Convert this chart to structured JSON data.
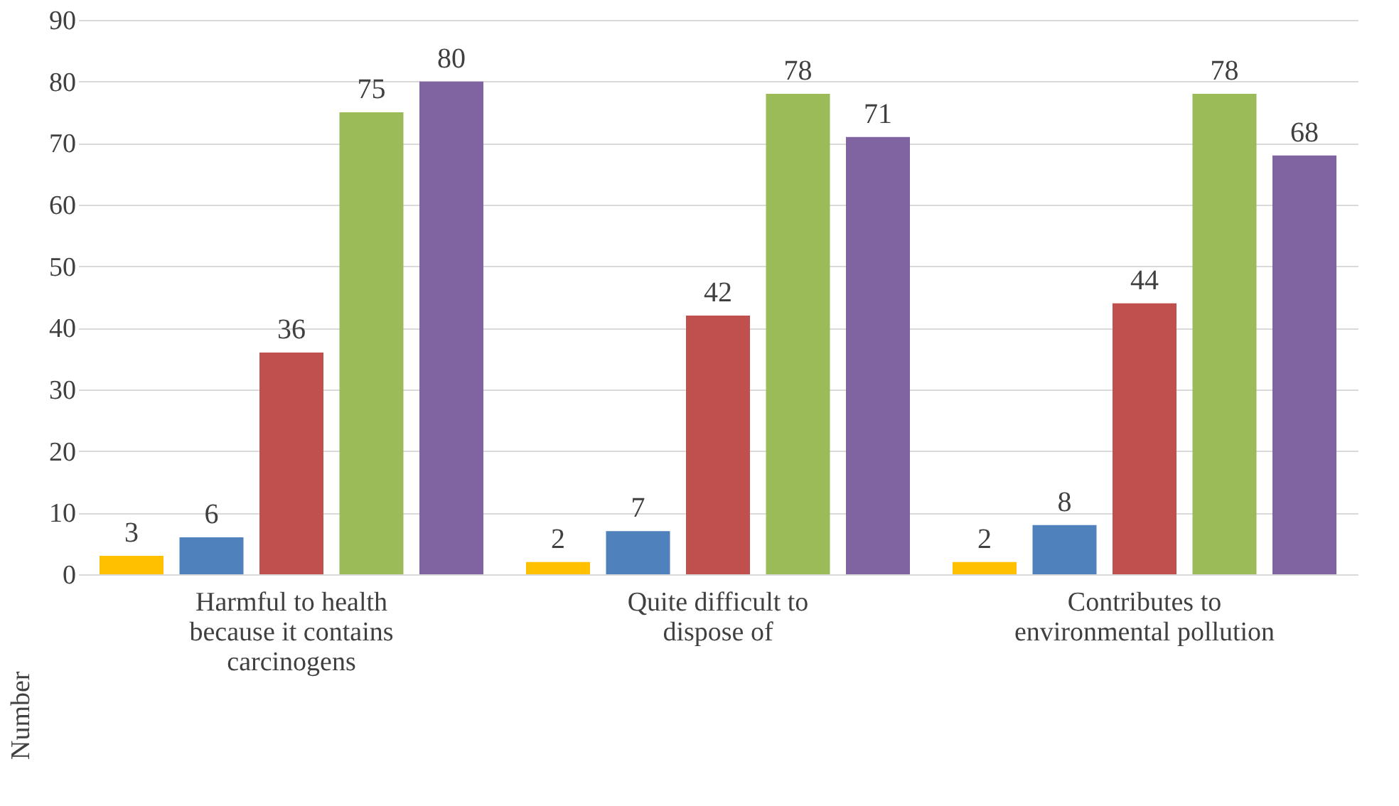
{
  "chart_data": {
    "type": "bar",
    "ylabel": "Number",
    "categories": [
      "Harmful to health because it contains carcinogens",
      "Quite difficult to dispose of",
      "Contributes to environmental pollution"
    ],
    "series": [
      {
        "color": "#ffc000",
        "values": [
          3,
          2,
          2
        ]
      },
      {
        "color": "#4f81bd",
        "values": [
          6,
          7,
          8
        ]
      },
      {
        "color": "#c0504d",
        "values": [
          36,
          42,
          44
        ]
      },
      {
        "color": "#9bbb59",
        "values": [
          75,
          78,
          78
        ]
      },
      {
        "color": "#8064a2",
        "values": [
          80,
          71,
          68
        ]
      }
    ],
    "ylim": [
      0,
      90
    ],
    "yticks": [
      0,
      10,
      20,
      30,
      40,
      50,
      60,
      70,
      80,
      90
    ],
    "grid": "y",
    "data_labels": true,
    "legend": false
  }
}
